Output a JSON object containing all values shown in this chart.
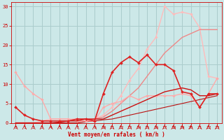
{
  "background_color": "#cce8e8",
  "grid_color": "#aacccc",
  "xlabel": "Vent moyen/en rafales ( km/h )",
  "xlabel_color": "#cc0000",
  "xlim": [
    -0.5,
    23.5
  ],
  "ylim": [
    0,
    31
  ],
  "yticks": [
    0,
    5,
    10,
    15,
    20,
    25,
    30
  ],
  "xticks": [
    0,
    1,
    2,
    3,
    4,
    5,
    6,
    7,
    8,
    9,
    10,
    11,
    12,
    13,
    14,
    15,
    16,
    17,
    18,
    19,
    20,
    21,
    22,
    23
  ],
  "series": [
    {
      "x": [
        0,
        1,
        2,
        3,
        4,
        5,
        6,
        7,
        8,
        9,
        10,
        11,
        12,
        13,
        14,
        15,
        16,
        17,
        18,
        19,
        20,
        21,
        22,
        23
      ],
      "y": [
        13,
        9.5,
        7.5,
        6,
        1,
        1,
        1,
        0.5,
        0.5,
        0.5,
        4,
        5,
        5.5,
        7,
        6,
        7,
        7,
        7,
        7,
        7.5,
        7,
        4,
        7.5,
        11.5
      ],
      "color": "#ffaaaa",
      "lw": 1.0,
      "marker": "D",
      "ms": 1.8,
      "zorder": 3
    },
    {
      "x": [
        0,
        1,
        2,
        3,
        4,
        5,
        6,
        7,
        8,
        9,
        10,
        11,
        12,
        13,
        14,
        15,
        16,
        17,
        18,
        19,
        20,
        21,
        22,
        23
      ],
      "y": [
        0,
        0,
        0,
        0.5,
        1,
        1,
        1,
        1,
        1,
        1,
        2,
        4,
        7,
        11,
        14,
        19,
        22,
        30,
        28,
        28.5,
        28,
        24.5,
        12,
        11.5
      ],
      "color": "#ffbbbb",
      "lw": 1.0,
      "marker": "D",
      "ms": 1.8,
      "zorder": 2
    },
    {
      "x": [
        0,
        1,
        2,
        3,
        4,
        5,
        6,
        7,
        8,
        9,
        10,
        11,
        12,
        13,
        14,
        15,
        16,
        17,
        18,
        19,
        20,
        21,
        22,
        23
      ],
      "y": [
        4,
        2,
        1,
        0.5,
        0.5,
        0.5,
        0.5,
        1,
        1,
        0.5,
        7.5,
        13,
        15.5,
        17,
        15.5,
        17.5,
        15,
        15,
        13.5,
        8,
        7.5,
        4,
        7.5,
        7.5
      ],
      "color": "#dd2222",
      "lw": 1.2,
      "marker": "D",
      "ms": 2.0,
      "zorder": 4
    },
    {
      "x": [
        0,
        1,
        2,
        3,
        4,
        5,
        6,
        7,
        8,
        9,
        10,
        11,
        12,
        13,
        14,
        15,
        16,
        17,
        18,
        19,
        20,
        21,
        22,
        23
      ],
      "y": [
        0,
        0,
        0,
        0,
        0,
        0,
        0,
        0,
        0.5,
        1,
        1.5,
        3,
        5,
        7,
        9,
        12,
        15,
        18,
        20,
        22,
        23,
        24,
        24,
        24
      ],
      "color": "#ee8888",
      "lw": 1.0,
      "marker": null,
      "ms": 0,
      "zorder": 2
    },
    {
      "x": [
        0,
        1,
        2,
        3,
        4,
        5,
        6,
        7,
        8,
        9,
        10,
        11,
        12,
        13,
        14,
        15,
        16,
        17,
        18,
        19,
        20,
        21,
        22,
        23
      ],
      "y": [
        0,
        0,
        0,
        0,
        0,
        0.2,
        0.5,
        0.5,
        1,
        1,
        1,
        2,
        3,
        4,
        5,
        6,
        7,
        8,
        8.5,
        9,
        8.5,
        7,
        7,
        7.5
      ],
      "color": "#cc1111",
      "lw": 1.0,
      "marker": null,
      "ms": 0,
      "zorder": 3
    },
    {
      "x": [
        0,
        1,
        2,
        3,
        4,
        5,
        6,
        7,
        8,
        9,
        10,
        11,
        12,
        13,
        14,
        15,
        16,
        17,
        18,
        19,
        20,
        21,
        22,
        23
      ],
      "y": [
        0,
        0,
        0,
        0,
        0,
        0,
        0,
        0,
        0.3,
        0.5,
        0.8,
        1,
        1.5,
        2,
        2.5,
        3,
        3.5,
        4,
        4.5,
        5,
        5.5,
        6,
        6.5,
        7
      ],
      "color": "#bb1111",
      "lw": 0.8,
      "marker": null,
      "ms": 0,
      "zorder": 2
    }
  ],
  "arrow_ticks": [
    0,
    1,
    2,
    3,
    4,
    5,
    6,
    7,
    8,
    9,
    10,
    11,
    12,
    13,
    14,
    15,
    16,
    17,
    18,
    19,
    20,
    21,
    22,
    23
  ]
}
